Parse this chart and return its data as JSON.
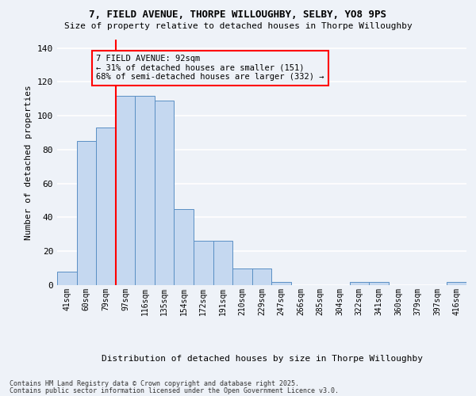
{
  "title": "7, FIELD AVENUE, THORPE WILLOUGHBY, SELBY, YO8 9PS",
  "subtitle": "Size of property relative to detached houses in Thorpe Willoughby",
  "xlabel": "Distribution of detached houses by size in Thorpe Willoughby",
  "ylabel": "Number of detached properties",
  "bar_color": "#c5d8f0",
  "bar_edge_color": "#5a8fc4",
  "categories": [
    "41sqm",
    "60sqm",
    "79sqm",
    "97sqm",
    "116sqm",
    "135sqm",
    "154sqm",
    "172sqm",
    "191sqm",
    "210sqm",
    "229sqm",
    "247sqm",
    "266sqm",
    "285sqm",
    "304sqm",
    "322sqm",
    "341sqm",
    "360sqm",
    "379sqm",
    "397sqm",
    "416sqm"
  ],
  "values": [
    8,
    85,
    93,
    112,
    112,
    109,
    45,
    26,
    26,
    10,
    10,
    2,
    0,
    0,
    0,
    2,
    2,
    0,
    0,
    0,
    2
  ],
  "ylim": [
    0,
    145
  ],
  "yticks": [
    0,
    20,
    40,
    60,
    80,
    100,
    120,
    140
  ],
  "red_line_index": 3,
  "annotation_title": "7 FIELD AVENUE: 92sqm",
  "annotation_line1": "← 31% of detached houses are smaller (151)",
  "annotation_line2": "68% of semi-detached houses are larger (332) →",
  "footnote1": "Contains HM Land Registry data © Crown copyright and database right 2025.",
  "footnote2": "Contains public sector information licensed under the Open Government Licence v3.0.",
  "bg_color": "#eef2f8",
  "grid_color": "#ffffff"
}
